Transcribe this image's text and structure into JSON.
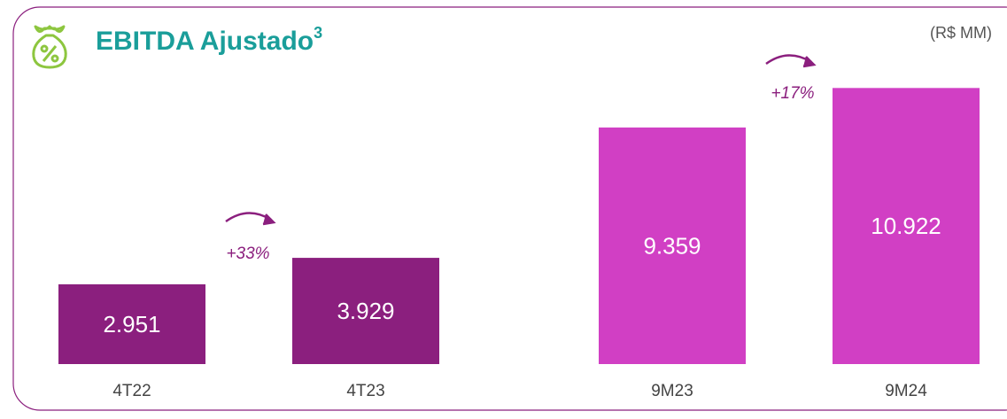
{
  "header": {
    "title": "EBITDA Ajustado",
    "superscript": "3",
    "unit": "(R$ MM)"
  },
  "chart_data": [
    {
      "type": "bar",
      "categories": [
        "4T22",
        "4T23"
      ],
      "values": [
        2951,
        3929
      ],
      "value_labels": [
        "2.951",
        "3.929"
      ],
      "color": "#8b1f7e",
      "ylim": [
        0,
        11500
      ],
      "annotation": "+33%"
    },
    {
      "type": "bar",
      "categories": [
        "9M23",
        "9M24"
      ],
      "values": [
        9359,
        10922
      ],
      "value_labels": [
        "9.359",
        "10.922"
      ],
      "color": "#d13fc4",
      "ylim": [
        0,
        12300
      ],
      "annotation": "+17%"
    }
  ]
}
